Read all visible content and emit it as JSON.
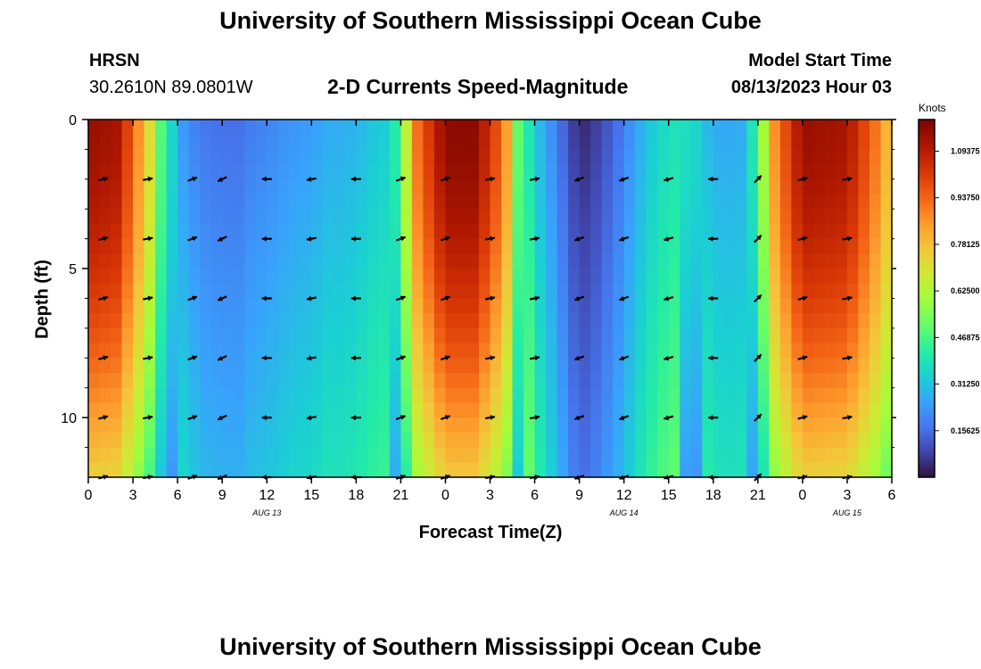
{
  "header": {
    "title": "University of Southern Mississippi Ocean Cube",
    "station": "HRSN",
    "coords": "30.2610N  89.0801W",
    "chart_title": "2-D Currents Speed-Magnitude",
    "model_label": "Model Start Time",
    "model_time": "08/13/2023 Hour 03"
  },
  "footer": {
    "title": "University of Southern Mississippi Ocean Cube"
  },
  "chart_data": {
    "type": "heatmap",
    "title": "2-D Currents Speed-Magnitude",
    "xlabel": "Forecast Time(Z)",
    "ylabel": "Depth (ft)",
    "x_ticks": [
      "0",
      "3",
      "6",
      "9",
      "12",
      "15",
      "18",
      "21",
      "0",
      "3",
      "6",
      "9",
      "12",
      "15",
      "18",
      "21",
      "0",
      "3",
      "6"
    ],
    "x_range_hours": [
      0,
      54
    ],
    "y_ticks": [
      "0",
      "5",
      "10"
    ],
    "y_range_ft": [
      0,
      12
    ],
    "date_labels": [
      {
        "text": "AUG 13",
        "hour": 12
      },
      {
        "text": "AUG 14",
        "hour": 36
      },
      {
        "text": "AUG 15",
        "hour": 51
      }
    ],
    "colorbar": {
      "unit": "Knots",
      "min": 0,
      "max": 1.2,
      "tick_labels": [
        "1.09375",
        "0.93750",
        "0.78125",
        "0.62500",
        "0.46875",
        "0.31250",
        "0.15625"
      ],
      "tick_values": [
        1.09375,
        0.9375,
        0.78125,
        0.625,
        0.46875,
        0.3125,
        0.15625
      ]
    },
    "surface_speed_knots": [
      {
        "hour": 0,
        "speed": 1.15
      },
      {
        "hour": 2,
        "speed": 1.12
      },
      {
        "hour": 4,
        "speed": 0.75
      },
      {
        "hour": 5,
        "speed": 0.45
      },
      {
        "hour": 6,
        "speed": 0.3
      },
      {
        "hour": 8,
        "speed": 0.2
      },
      {
        "hour": 10,
        "speed": 0.12
      },
      {
        "hour": 12,
        "speed": 0.15
      },
      {
        "hour": 14,
        "speed": 0.25
      },
      {
        "hour": 16,
        "speed": 0.32
      },
      {
        "hour": 18,
        "speed": 0.28
      },
      {
        "hour": 20,
        "speed": 0.28
      },
      {
        "hour": 21,
        "speed": 0.5
      },
      {
        "hour": 22,
        "speed": 0.9
      },
      {
        "hour": 24,
        "speed": 1.17
      },
      {
        "hour": 26,
        "speed": 1.17
      },
      {
        "hour": 28,
        "speed": 0.9
      },
      {
        "hour": 29,
        "speed": 0.45
      },
      {
        "hour": 30,
        "speed": 0.28
      },
      {
        "hour": 32,
        "speed": 0.15
      },
      {
        "hour": 33,
        "speed": 0.08
      },
      {
        "hour": 35,
        "speed": 0.15
      },
      {
        "hour": 36,
        "speed": 0.18
      },
      {
        "hour": 38,
        "speed": 0.28
      },
      {
        "hour": 40,
        "speed": 0.38
      },
      {
        "hour": 42,
        "speed": 0.32
      },
      {
        "hour": 44,
        "speed": 0.3
      },
      {
        "hour": 45,
        "speed": 0.45
      },
      {
        "hour": 46,
        "speed": 0.85
      },
      {
        "hour": 48,
        "speed": 1.15
      },
      {
        "hour": 51,
        "speed": 1.12
      },
      {
        "hour": 53,
        "speed": 0.9
      },
      {
        "hour": 54,
        "speed": 0.75
      }
    ],
    "arrow_depths_ft": [
      2,
      4,
      6,
      8,
      10,
      12
    ],
    "arrow_direction_deg": [
      {
        "hour": 1,
        "dir": 75
      },
      {
        "hour": 4,
        "dir": 80
      },
      {
        "hour": 7,
        "dir": 70
      },
      {
        "hour": 9,
        "dir": 245
      },
      {
        "hour": 12,
        "dir": 270
      },
      {
        "hour": 15,
        "dir": 260
      },
      {
        "hour": 18,
        "dir": 270
      },
      {
        "hour": 21,
        "dir": 70
      },
      {
        "hour": 24,
        "dir": 70
      },
      {
        "hour": 27,
        "dir": 80
      },
      {
        "hour": 30,
        "dir": 80
      },
      {
        "hour": 33,
        "dir": 250
      },
      {
        "hour": 36,
        "dir": 250
      },
      {
        "hour": 39,
        "dir": 255
      },
      {
        "hour": 42,
        "dir": 270
      },
      {
        "hour": 45,
        "dir": 45
      },
      {
        "hour": 48,
        "dir": 75
      },
      {
        "hour": 51,
        "dir": 80
      }
    ]
  }
}
